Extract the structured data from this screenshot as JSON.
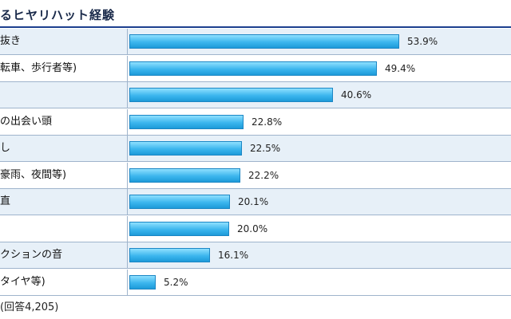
{
  "title": "るヒヤリハット経験",
  "footnote": "(回答4,205)",
  "chart_data": {
    "type": "bar",
    "orientation": "horizontal",
    "categories": [
      "抜き",
      "転車、歩行者等)",
      "",
      "の出会い頭",
      "し",
      "豪雨、夜間等)",
      "直",
      "",
      "クションの音",
      "タイヤ等)"
    ],
    "values": [
      53.9,
      49.4,
      40.6,
      22.8,
      22.5,
      22.2,
      20.1,
      20.0,
      16.1,
      5.2
    ],
    "value_labels": [
      "53.9%",
      "49.4%",
      "40.6%",
      "22.8%",
      "22.5%",
      "22.2%",
      "20.1%",
      "20.0%",
      "16.1%",
      "5.2%"
    ],
    "xlim": [
      0,
      100
    ],
    "legend": "none",
    "grid": false,
    "bar_color": "#3cb6ee",
    "row_shade_color": "#e7f0f8"
  }
}
